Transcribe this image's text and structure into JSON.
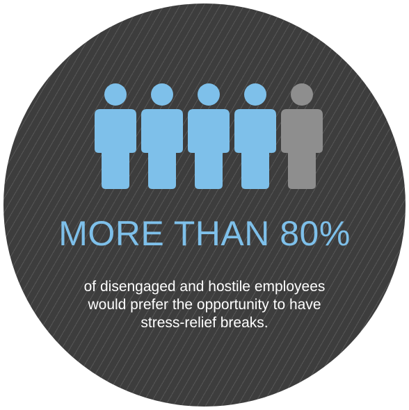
{
  "colors": {
    "circle_background": "#3d3d3d",
    "accent_blue": "#7ec0ea",
    "inactive_gray": "#8e8e8e",
    "text_white": "#ffffff"
  },
  "people": {
    "total": 5,
    "highlighted": 4,
    "icon": "person-icon"
  },
  "headline": "MORE THAN 80%",
  "body": "of disengaged and hostile employees would prefer the opportunity to have stress-relief breaks."
}
